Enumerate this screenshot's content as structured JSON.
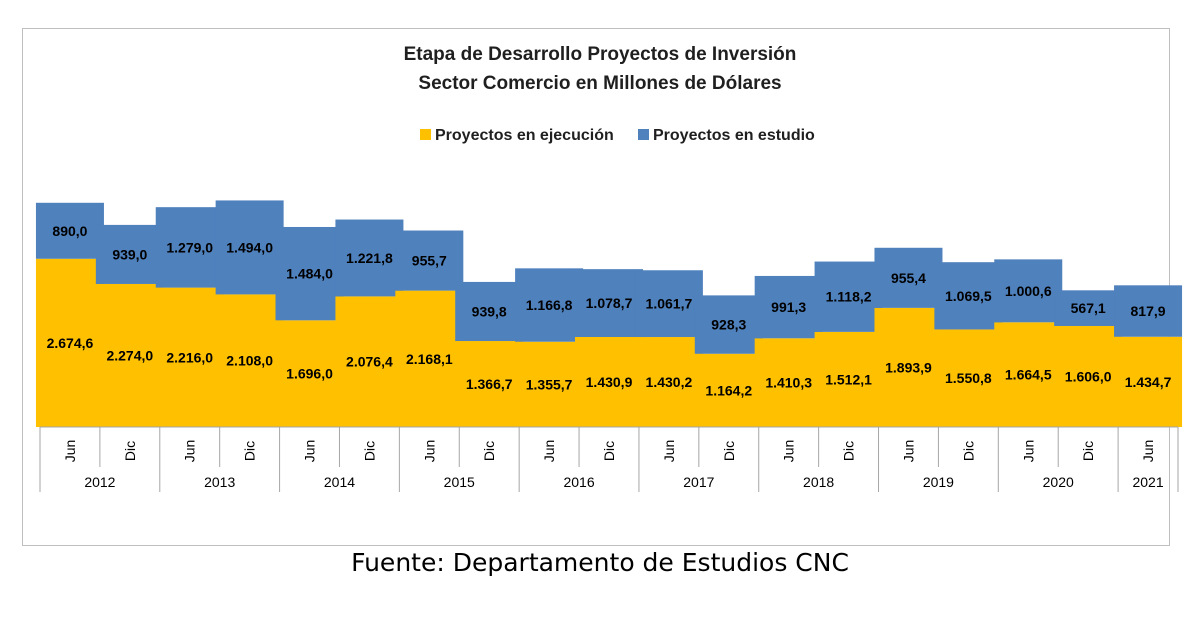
{
  "chart_data": {
    "type": "bar",
    "stacked": true,
    "title": "Etapa de Desarrollo Proyectos de Inversión",
    "subtitle": "Sector Comercio en Millones de Dólares",
    "legend_position": "top",
    "grid": false,
    "ylim": [
      0,
      4000
    ],
    "categories": [
      "Jun",
      "Dic",
      "Jun",
      "Dic",
      "Jun",
      "Dic",
      "Jun",
      "Dic",
      "Jun",
      "Dic",
      "Jun",
      "Dic",
      "Jun",
      "Dic",
      "Jun",
      "Dic",
      "Jun",
      "Dic",
      "Jun"
    ],
    "groups": [
      {
        "label": "2012",
        "count": 2
      },
      {
        "label": "2013",
        "count": 2
      },
      {
        "label": "2014",
        "count": 2
      },
      {
        "label": "2015",
        "count": 2
      },
      {
        "label": "2016",
        "count": 2
      },
      {
        "label": "2017",
        "count": 2
      },
      {
        "label": "2018",
        "count": 2
      },
      {
        "label": "2019",
        "count": 2
      },
      {
        "label": "2020",
        "count": 2
      },
      {
        "label": "2021",
        "count": 1
      }
    ],
    "series": [
      {
        "name": "Proyectos en ejecución",
        "color": "#FFC000",
        "values": [
          2674.6,
          2274.0,
          2216.0,
          2108.0,
          1696.0,
          2076.4,
          2168.1,
          1366.7,
          1355.7,
          1430.9,
          1430.2,
          1164.2,
          1410.3,
          1512.1,
          1893.9,
          1550.8,
          1664.5,
          1606.0,
          1434.7
        ],
        "labels": [
          "2.674,6",
          "2.274,0",
          "2.216,0",
          "2.108,0",
          "1.696,0",
          "2.076,4",
          "2.168,1",
          "1.366,7",
          "1.355,7",
          "1.430,9",
          "1.430,2",
          "1.164,2",
          "1.410,3",
          "1.512,1",
          "1.893,9",
          "1.550,8",
          "1.664,5",
          "1.606,0",
          "1.434,7"
        ]
      },
      {
        "name": "Proyectos en estudio",
        "color": "#4F81BD",
        "values": [
          890.0,
          939.0,
          1279.0,
          1494.0,
          1484.0,
          1221.8,
          955.7,
          939.8,
          1166.8,
          1078.7,
          1061.7,
          928.3,
          991.3,
          1118.2,
          955.4,
          1069.5,
          1000.6,
          567.1,
          817.9
        ],
        "labels": [
          "890,0",
          "939,0",
          "1.279,0",
          "1.494,0",
          "1.484,0",
          "1.221,8",
          "955,7",
          "939,8",
          "1.166,8",
          "1.078,7",
          "1.061,7",
          "928,3",
          "991,3",
          "1.118,2",
          "955,4",
          "1.069,5",
          "1.000,6",
          "567,1",
          "817,9"
        ]
      }
    ]
  },
  "source_note": "Fuente: Departamento de Estudios CNC"
}
